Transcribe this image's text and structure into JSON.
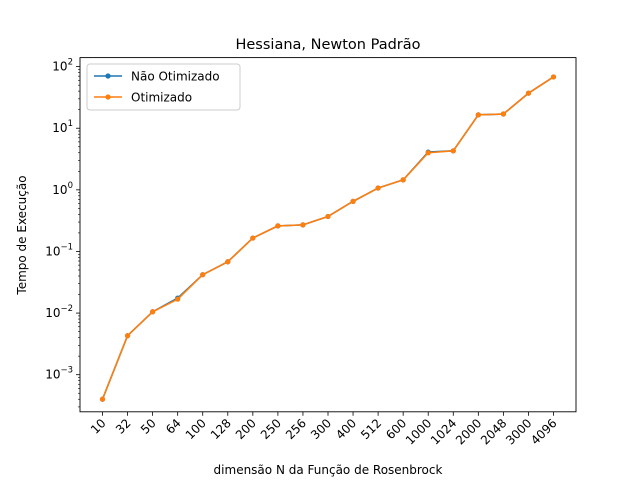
{
  "chart_data": {
    "type": "line",
    "title": "Hessiana, Newton Padrão",
    "xlabel": "dimensão N da Função de Rosenbrock",
    "ylabel": "Tempo de Execução",
    "yscale": "log",
    "ylim": [
      0.00025,
      140
    ],
    "categories": [
      "10",
      "32",
      "50",
      "64",
      "100",
      "128",
      "200",
      "250",
      "256",
      "300",
      "400",
      "512",
      "600",
      "1000",
      "1024",
      "2000",
      "2048",
      "3000",
      "4096"
    ],
    "y_ticks": [
      {
        "base": "10",
        "exp": "−3",
        "value": 0.001
      },
      {
        "base": "10",
        "exp": "−2",
        "value": 0.01
      },
      {
        "base": "10",
        "exp": "−1",
        "value": 0.1
      },
      {
        "base": "10",
        "exp": "0",
        "value": 1
      },
      {
        "base": "10",
        "exp": "1",
        "value": 10
      },
      {
        "base": "10",
        "exp": "2",
        "value": 100
      }
    ],
    "legend_position": "upper-left",
    "grid": false,
    "series": [
      {
        "name": "Não Otimizado",
        "color": "#1f77b4",
        "values": [
          0.0004,
          0.0043,
          0.0105,
          0.0175,
          0.042,
          0.068,
          0.165,
          0.26,
          0.27,
          0.37,
          0.65,
          1.07,
          1.45,
          4.1,
          4.3,
          16.5,
          17.0,
          37.0,
          68.0
        ]
      },
      {
        "name": "Otimizado",
        "color": "#ff7f0e",
        "values": [
          0.0004,
          0.0043,
          0.0105,
          0.0168,
          0.042,
          0.068,
          0.165,
          0.26,
          0.27,
          0.37,
          0.65,
          1.07,
          1.45,
          4.0,
          4.3,
          16.5,
          17.0,
          37.0,
          68.0
        ]
      }
    ]
  }
}
